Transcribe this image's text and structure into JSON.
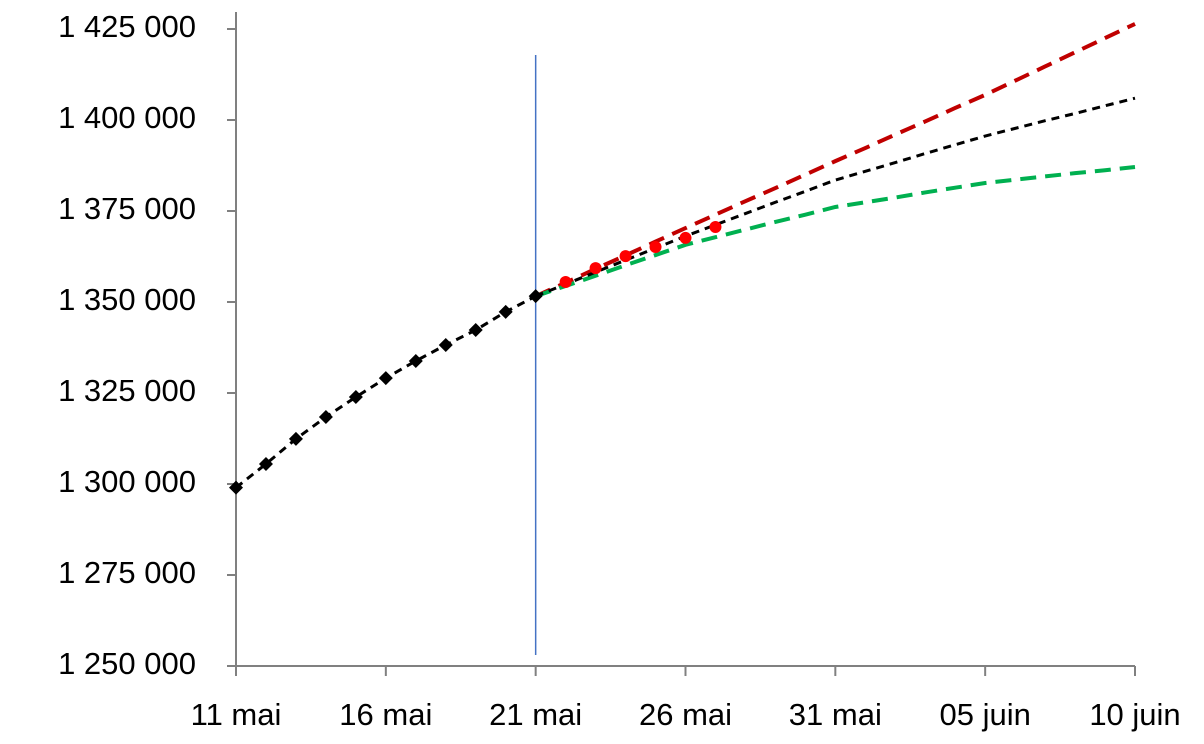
{
  "chart_data": {
    "type": "line",
    "categories": [
      "11 mai",
      null,
      null,
      null,
      null,
      "16 mai",
      null,
      null,
      null,
      null,
      "21 mai",
      null,
      null,
      null,
      null,
      "26 mai",
      null,
      null,
      null,
      null,
      "31 mai",
      null,
      null,
      null,
      null,
      "05 juin",
      null,
      null,
      null,
      null,
      "10 juin"
    ],
    "ylim": [
      1250000,
      1425000
    ],
    "yticks": [
      {
        "value": 1250000,
        "label": "1 250 000"
      },
      {
        "value": 1275000,
        "label": "1 275 000"
      },
      {
        "value": 1300000,
        "label": "1 300 000"
      },
      {
        "value": 1325000,
        "label": "1 325 000"
      },
      {
        "value": 1350000,
        "label": "1 350 000"
      },
      {
        "value": 1375000,
        "label": "1 375 000"
      },
      {
        "value": 1400000,
        "label": "1 400 000"
      },
      {
        "value": 1425000,
        "label": "1 425 000"
      }
    ],
    "grid": false,
    "vline": {
      "category": "21 mai",
      "color": "#4472c4"
    },
    "series": [
      {
        "color": "#c00000",
        "dash": true,
        "width": 4,
        "marker": null,
        "values": [
          null,
          null,
          null,
          null,
          null,
          null,
          null,
          null,
          null,
          null,
          1351600,
          1355300,
          1359100,
          1362800,
          1366600,
          1370300,
          1374000,
          1377700,
          1381300,
          1385000,
          1388700,
          1392300,
          1396000,
          1399600,
          1403300,
          1406900,
          1410800,
          1414700,
          1418600,
          1422500,
          1426400
        ]
      },
      {
        "color": "#00b050",
        "dash": true,
        "width": 4,
        "marker": null,
        "values": [
          null,
          null,
          null,
          null,
          null,
          null,
          null,
          null,
          null,
          null,
          1351600,
          1354400,
          1357200,
          1360100,
          1362900,
          1365700,
          1367800,
          1369900,
          1372000,
          1374000,
          1376100,
          1377400,
          1378700,
          1380100,
          1381400,
          1382700,
          1383600,
          1384500,
          1385400,
          1386200,
          1387100
        ]
      },
      {
        "color": "#000000",
        "dash": true,
        "width": 3,
        "marker": null,
        "values": [
          null,
          null,
          null,
          null,
          null,
          null,
          null,
          null,
          null,
          null,
          1351600,
          1354900,
          1358200,
          1361500,
          1364800,
          1368100,
          1371200,
          1374300,
          1377400,
          1380400,
          1383500,
          1385900,
          1388300,
          1390800,
          1393200,
          1395600,
          1397700,
          1399800,
          1401800,
          1403900,
          1406000
        ]
      },
      {
        "color": "#000000",
        "dash": true,
        "width": 3,
        "marker": "diamond",
        "values": [
          1299000,
          1305500,
          1312400,
          1318400,
          1323900,
          1329100,
          1333800,
          1338200,
          1342300,
          1347300,
          1351600,
          null,
          null,
          null,
          null,
          null,
          null,
          null,
          null,
          null,
          null,
          null,
          null,
          null,
          null,
          null,
          null,
          null,
          null,
          null,
          null
        ]
      },
      {
        "color": "#ff0000",
        "dash": false,
        "width": 0,
        "marker": "circle",
        "values": [
          null,
          null,
          null,
          null,
          null,
          null,
          null,
          null,
          null,
          null,
          null,
          1355500,
          1359300,
          1362600,
          1365100,
          1367600,
          1370600,
          null,
          null,
          null,
          null,
          null,
          null,
          null,
          null,
          null,
          null,
          null,
          null,
          null,
          null
        ]
      }
    ]
  }
}
